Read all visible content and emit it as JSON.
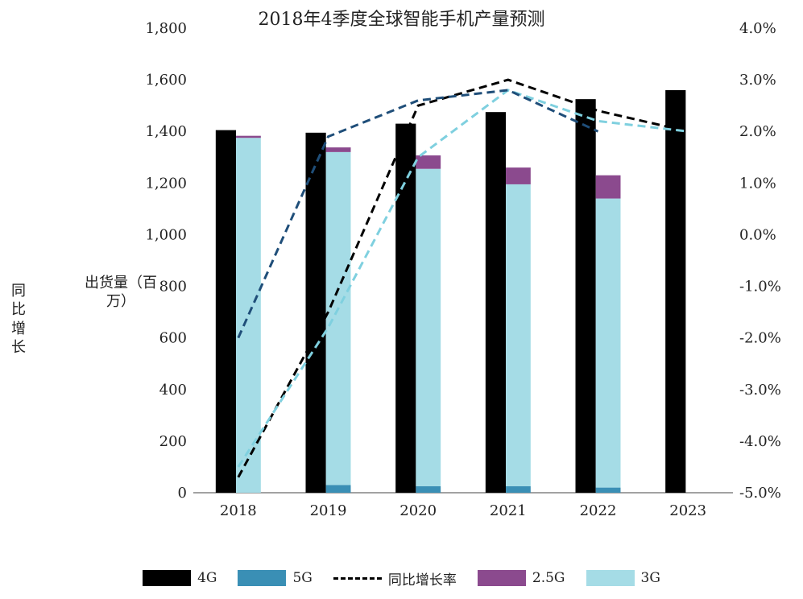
{
  "chart_data": {
    "type": "bar",
    "title": "2018年4季度全球智能手机产量预测",
    "ylabel": "出货量（百万）",
    "y2label": "同比增长",
    "categories": [
      "2018",
      "2019",
      "2020",
      "2021",
      "2022",
      "2023"
    ],
    "stacked": true,
    "ylim": [
      0,
      1800
    ],
    "y_ticks": [
      "0",
      "200",
      "400",
      "600",
      "800",
      "1,000",
      "1,200",
      "1,400",
      "1,600",
      "1,800"
    ],
    "y2lim": [
      -5.0,
      4.0
    ],
    "y2_ticks": [
      "-5.0%",
      "-4.0%",
      "-3.0%",
      "-2.0%",
      "-1.0%",
      "0.0%",
      "1.0%",
      "2.0%",
      "3.0%",
      "4.0%"
    ],
    "series": [
      {
        "name": "4G",
        "color": "#000000",
        "values": [
          1405,
          1395,
          1430,
          1475,
          1525,
          1560
        ]
      },
      {
        "name": "2.5G",
        "color": "#8b4a8e",
        "values": [
          8,
          18,
          52,
          65,
          90,
          0
        ]
      },
      {
        "name": "3G",
        "color": "#a5dce6",
        "values": [
          1375,
          1290,
          1230,
          1170,
          1120,
          0
        ]
      },
      {
        "name": "5G",
        "color": "#3a8fb5",
        "values": [
          0,
          30,
          25,
          25,
          20,
          0
        ]
      }
    ],
    "line_series": [
      {
        "name": "同比增长率",
        "color": "#000000",
        "axis": "right",
        "values": [
          -4.7,
          -1.5,
          2.5,
          3.0,
          2.4,
          2.0
        ]
      },
      {
        "name": "",
        "color": "#7fd0df",
        "axis": "right",
        "values": [
          -4.5,
          -1.8,
          1.5,
          2.8,
          2.2,
          2.0
        ]
      },
      {
        "name": "",
        "color": "#1f4e79",
        "axis": "right",
        "values": [
          -2.0,
          1.9,
          2.6,
          2.8,
          2.0,
          null
        ]
      }
    ],
    "legend": [
      "4G",
      "5G",
      "同比增长率",
      "2.5G",
      "3G"
    ],
    "legend_position": "bottom",
    "grid": false
  }
}
